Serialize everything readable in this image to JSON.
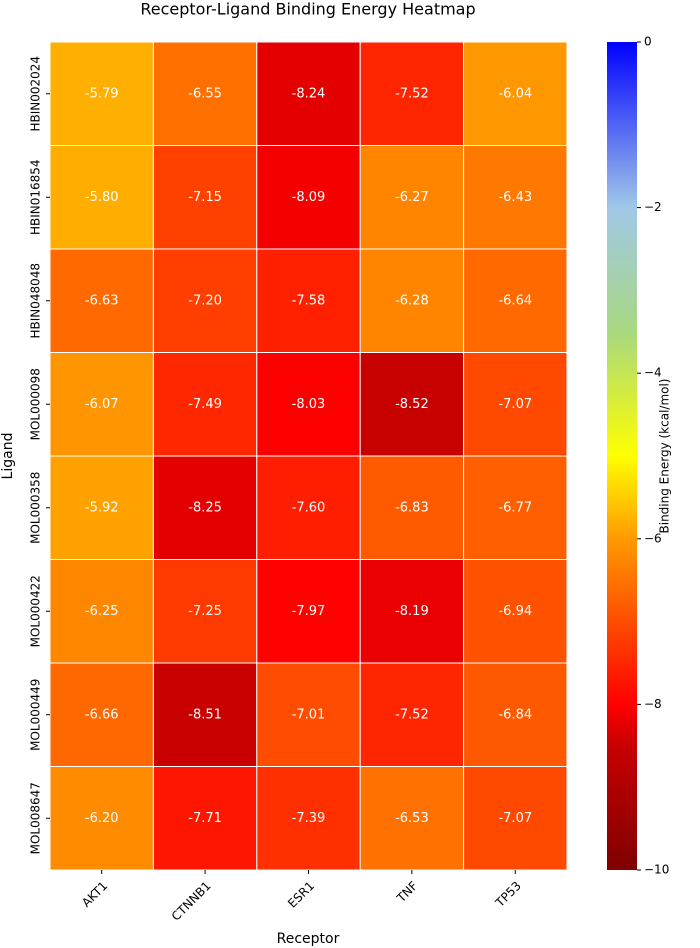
{
  "chart_data": {
    "type": "heatmap",
    "title": "Receptor-Ligand Binding Energy Heatmap",
    "xlabel": "Receptor",
    "ylabel": "Ligand",
    "x": [
      "AKT1",
      "CTNNB1",
      "ESR1",
      "TNF",
      "TP53"
    ],
    "y": [
      "HBIN002024",
      "HBIN016854",
      "HBIN048048",
      "MOL000098",
      "MOL000358",
      "MOL000422",
      "MOL000449",
      "MOL008647"
    ],
    "values": [
      [
        -5.79,
        -6.55,
        -8.24,
        -7.52,
        -6.04
      ],
      [
        -5.8,
        -7.15,
        -8.09,
        -6.27,
        -6.43
      ],
      [
        -6.63,
        -7.2,
        -7.58,
        -6.28,
        -6.64
      ],
      [
        -6.07,
        -7.49,
        -8.03,
        -8.52,
        -7.07
      ],
      [
        -5.92,
        -8.25,
        -7.6,
        -6.83,
        -6.77
      ],
      [
        -6.25,
        -7.25,
        -7.97,
        -8.19,
        -6.94
      ],
      [
        -6.66,
        -8.51,
        -7.01,
        -7.52,
        -6.84
      ],
      [
        -6.2,
        -7.71,
        -7.39,
        -6.53,
        -7.07
      ]
    ],
    "value_labels": [
      [
        "-5.79",
        "-6.55",
        "-8.24",
        "-7.52",
        "-6.04"
      ],
      [
        "-5.80",
        "-7.15",
        "-8.09",
        "-6.27",
        "-6.43"
      ],
      [
        "-6.63",
        "-7.20",
        "-7.58",
        "-6.28",
        "-6.64"
      ],
      [
        "-6.07",
        "-7.49",
        "-8.03",
        "-8.52",
        "-7.07"
      ],
      [
        "-5.92",
        "-8.25",
        "-7.60",
        "-6.83",
        "-6.77"
      ],
      [
        "-6.25",
        "-7.25",
        "-7.97",
        "-8.19",
        "-6.94"
      ],
      [
        "-6.66",
        "-8.51",
        "-7.01",
        "-7.52",
        "-6.84"
      ],
      [
        "-6.20",
        "-7.71",
        "-7.39",
        "-6.53",
        "-7.07"
      ]
    ],
    "colorbar_label": "Binding Energy (kcal/mol)",
    "zlim": [
      -10,
      0
    ],
    "zticks": [
      {
        "value": 0,
        "label": "0"
      },
      {
        "value": -2,
        "label": "−2"
      },
      {
        "value": -4,
        "label": "−4"
      },
      {
        "value": -6,
        "label": "−6"
      },
      {
        "value": -8,
        "label": "−8"
      },
      {
        "value": -10,
        "label": "−10"
      }
    ],
    "colorscale": [
      [
        -10,
        "#800000"
      ],
      [
        -8.5,
        "#c80000"
      ],
      [
        -8,
        "#ff0000"
      ],
      [
        -6,
        "#ff9a00"
      ],
      [
        -5,
        "#ffff00"
      ],
      [
        -3.5,
        "#a8d880"
      ],
      [
        -2,
        "#a0c8e8"
      ],
      [
        0,
        "#0000ff"
      ]
    ]
  }
}
